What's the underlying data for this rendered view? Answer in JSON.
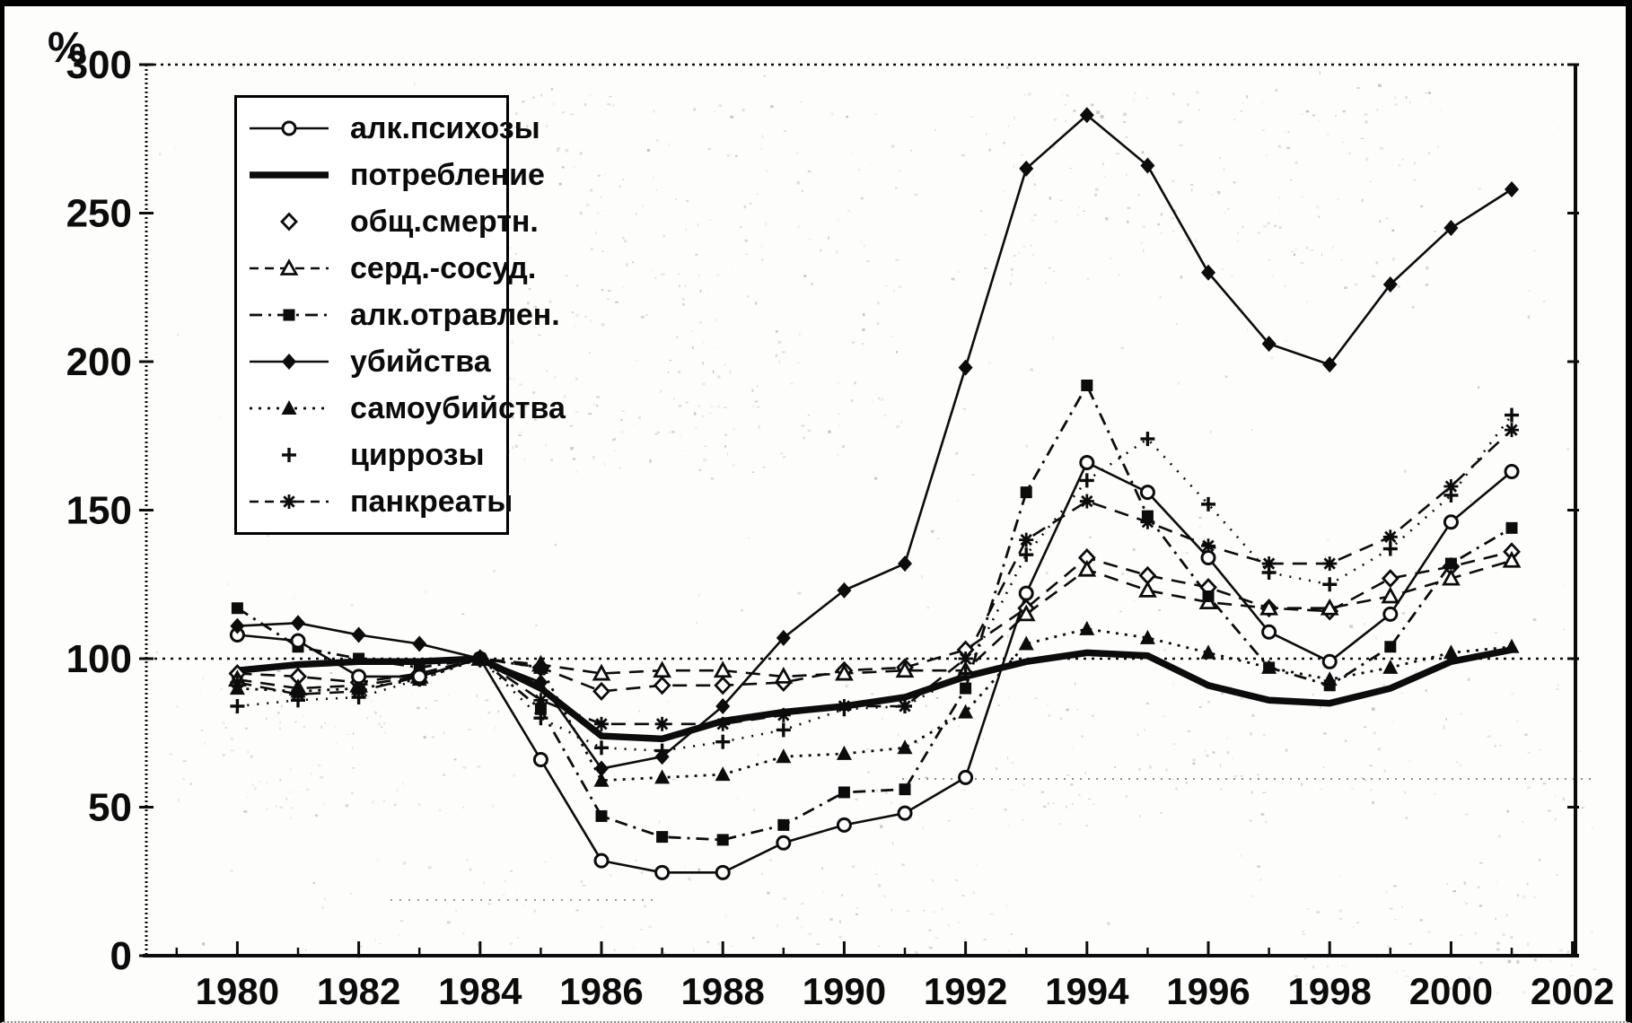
{
  "figure": {
    "y_axis_unit": "%",
    "y_tick_labels": [
      "0",
      "50",
      "100",
      "150",
      "200",
      "250",
      "300"
    ],
    "x_tick_labels": [
      "1980",
      "1982",
      "1984",
      "1986",
      "1988",
      "1990",
      "1992",
      "1994",
      "1996",
      "1998",
      "2000",
      "2002"
    ]
  },
  "chart_data": {
    "type": "line",
    "title": "",
    "ylabel": "%",
    "xlabel": "",
    "grid": "horizontal dotted reference line at 100%",
    "reference_line": 100,
    "legend_position": "upper-left",
    "xlim": [
      1978.5,
      2002.05
    ],
    "ylim": [
      0,
      300
    ],
    "y_ticks": [
      0,
      50,
      100,
      150,
      200,
      250,
      300
    ],
    "x_major_ticks": [
      1980,
      1982,
      1984,
      1986,
      1988,
      1990,
      1992,
      1994,
      1996,
      1998,
      2000,
      2002
    ],
    "x": [
      1980,
      1981,
      1982,
      1983,
      1984,
      1985,
      1986,
      1987,
      1988,
      1989,
      1990,
      1991,
      1992,
      1993,
      1994,
      1995,
      1996,
      1997,
      1998,
      1999,
      2000,
      2001
    ],
    "series": [
      {
        "key": "psychoses",
        "name": "алк.психозы",
        "marker": "open-circle",
        "line": "solid-thin",
        "legend_line": true,
        "values": [
          108,
          106,
          94,
          94,
          100,
          66,
          32,
          28,
          28,
          38,
          44,
          48,
          60,
          122,
          166,
          156,
          134,
          109,
          99,
          115,
          146,
          163
        ]
      },
      {
        "key": "consumption",
        "name": "потребление",
        "marker": "none",
        "line": "solid-thick",
        "legend_line": true,
        "values": [
          96,
          98,
          99,
          99,
          100,
          90,
          74,
          73,
          79,
          82,
          84,
          87,
          94,
          99,
          102,
          101,
          91,
          86,
          85,
          90,
          99,
          103
        ]
      },
      {
        "key": "total-mortality",
        "name": "общ.смертн.",
        "marker": "open-diamond",
        "line": "dashed",
        "legend_line": false,
        "values": [
          95,
          94,
          92,
          95,
          100,
          97,
          89,
          91,
          91,
          92,
          96,
          97,
          103,
          117,
          134,
          128,
          124,
          117,
          116,
          127,
          131,
          136
        ]
      },
      {
        "key": "cardiovascular",
        "name": "серд.-сосуд.",
        "marker": "open-triangle",
        "line": "dashed",
        "legend_line": true,
        "values": [
          93,
          90,
          91,
          94,
          100,
          98,
          95,
          96,
          96,
          94,
          95,
          96,
          96,
          115,
          130,
          123,
          119,
          117,
          117,
          121,
          127,
          133
        ]
      },
      {
        "key": "alcohol-poisoning",
        "name": "алк.отравлен.",
        "marker": "filled-square",
        "line": "dash-dot",
        "legend_line": true,
        "values": [
          117,
          104,
          100,
          97,
          100,
          83,
          47,
          40,
          39,
          44,
          55,
          56,
          90,
          156,
          192,
          148,
          121,
          97,
          91,
          104,
          132,
          144
        ]
      },
      {
        "key": "homicides",
        "name": "убийства",
        "marker": "filled-diamond",
        "line": "solid-thin",
        "legend_line": true,
        "values": [
          111,
          112,
          108,
          105,
          100,
          92,
          63,
          67,
          84,
          107,
          123,
          132,
          198,
          265,
          283,
          266,
          230,
          206,
          199,
          226,
          245,
          258
        ]
      },
      {
        "key": "suicides",
        "name": "самоубийства",
        "marker": "filled-triangle",
        "line": "dotted",
        "legend_line": true,
        "values": [
          90,
          89,
          90,
          93,
          100,
          97,
          59,
          60,
          61,
          67,
          68,
          70,
          82,
          105,
          110,
          107,
          102,
          97,
          93,
          97,
          102,
          104
        ]
      },
      {
        "key": "cirrhosis",
        "name": "циррозы",
        "marker": "plus",
        "line": "dotted-sparse",
        "legend_line": false,
        "values": [
          84,
          86,
          87,
          93,
          100,
          80,
          70,
          69,
          72,
          76,
          83,
          84,
          95,
          135,
          160,
          174,
          152,
          129,
          125,
          137,
          155,
          182
        ]
      },
      {
        "key": "pancreatitis",
        "name": "панкреаты",
        "marker": "star",
        "line": "dashed",
        "legend_line": true,
        "values": [
          92,
          88,
          89,
          94,
          100,
          86,
          78,
          78,
          78,
          81,
          84,
          84,
          100,
          140,
          153,
          146,
          138,
          132,
          132,
          141,
          158,
          177
        ]
      }
    ]
  }
}
